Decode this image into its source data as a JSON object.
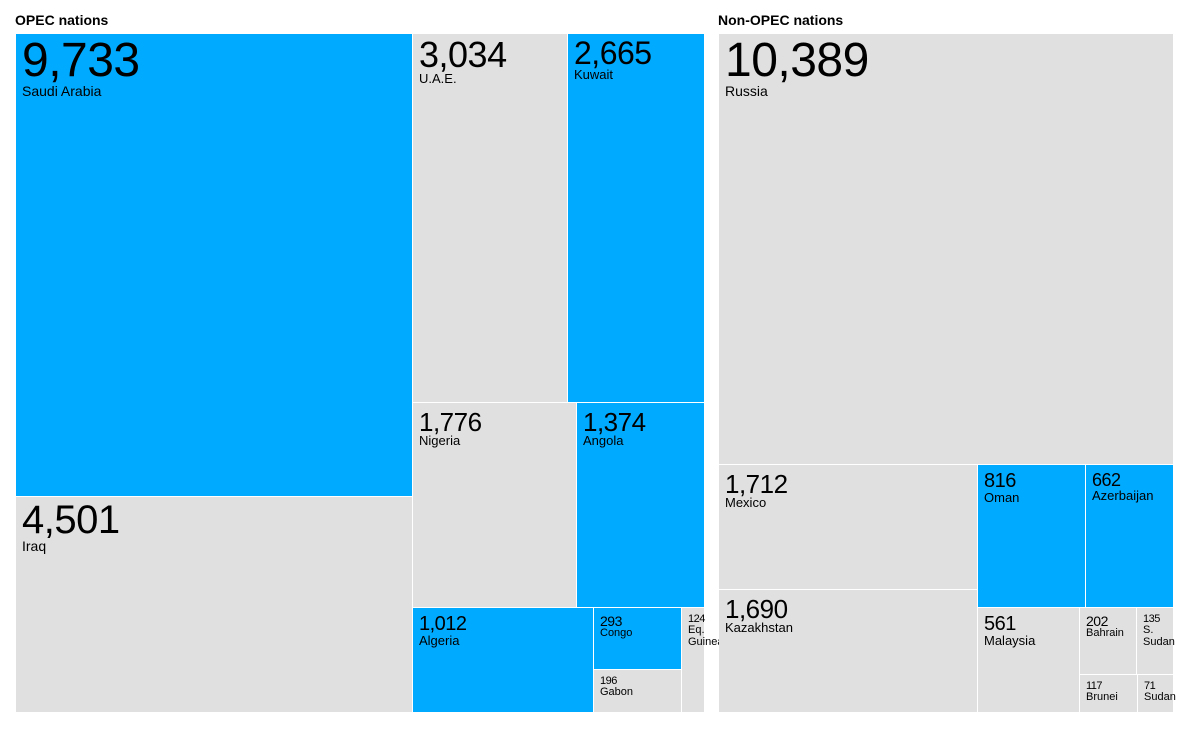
{
  "chart_data": [
    {
      "type": "treemap",
      "title": "OPEC nations",
      "items": [
        {
          "label": "Saudi Arabia",
          "value": 9733,
          "value_text": "9,733",
          "color": "#00aaff"
        },
        {
          "label": "Iraq",
          "value": 4501,
          "value_text": "4,501",
          "color": "#e0e0e0"
        },
        {
          "label": "U.A.E.",
          "value": 3034,
          "value_text": "3,034",
          "color": "#e0e0e0"
        },
        {
          "label": "Kuwait",
          "value": 2665,
          "value_text": "2,665",
          "color": "#00aaff"
        },
        {
          "label": "Nigeria",
          "value": 1776,
          "value_text": "1,776",
          "color": "#e0e0e0"
        },
        {
          "label": "Angola",
          "value": 1374,
          "value_text": "1,374",
          "color": "#00aaff"
        },
        {
          "label": "Algeria",
          "value": 1012,
          "value_text": "1,012",
          "color": "#00aaff"
        },
        {
          "label": "Congo",
          "value": 293,
          "value_text": "293",
          "color": "#00aaff"
        },
        {
          "label": "Gabon",
          "value": 196,
          "value_text": "196",
          "color": "#e0e0e0"
        },
        {
          "label": "Eq.\nGuinea",
          "value": 124,
          "value_text": "124",
          "color": "#e0e0e0"
        }
      ]
    },
    {
      "type": "treemap",
      "title": "Non-OPEC nations",
      "items": [
        {
          "label": "Russia",
          "value": 10389,
          "value_text": "10,389",
          "color": "#e0e0e0"
        },
        {
          "label": "Mexico",
          "value": 1712,
          "value_text": "1,712",
          "color": "#e0e0e0"
        },
        {
          "label": "Kazakhstan",
          "value": 1690,
          "value_text": "1,690",
          "color": "#e0e0e0"
        },
        {
          "label": "Oman",
          "value": 816,
          "value_text": "816",
          "color": "#00aaff"
        },
        {
          "label": "Azerbaijan",
          "value": 662,
          "value_text": "662",
          "color": "#00aaff"
        },
        {
          "label": "Malaysia",
          "value": 561,
          "value_text": "561",
          "color": "#e0e0e0"
        },
        {
          "label": "Bahrain",
          "value": 202,
          "value_text": "202",
          "color": "#e0e0e0"
        },
        {
          "label": "S.\nSudan",
          "value": 135,
          "value_text": "135",
          "color": "#e0e0e0"
        },
        {
          "label": "Brunei",
          "value": 117,
          "value_text": "117",
          "color": "#e0e0e0"
        },
        {
          "label": "Sudan",
          "value": 71,
          "value_text": "71",
          "color": "#e0e0e0"
        }
      ]
    }
  ]
}
